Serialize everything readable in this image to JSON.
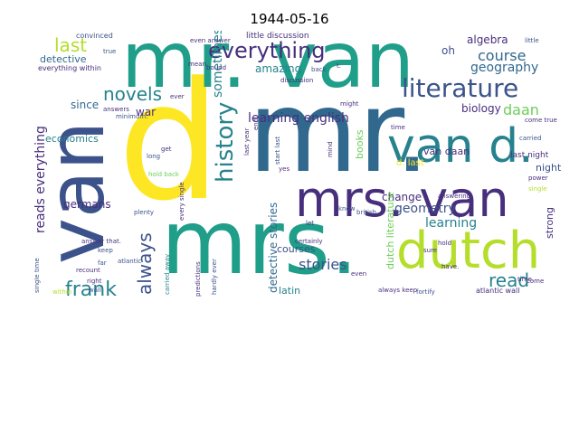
{
  "title": "1944-05-16",
  "palette": {
    "purple": "#472f7d",
    "indigo": "#3b528b",
    "blue": "#31688e",
    "teal": "#26828e",
    "green": "#1f9e89",
    "lime": "#6ece58",
    "yellowgreen": "#b5de2b",
    "yellow": "#fde725"
  },
  "words": {
    "d": "d",
    "mr_big": "mr.",
    "mrs_big": "mrs.",
    "van_big": "van",
    "mr_van": "mr. van",
    "dutch": "dutch",
    "mrs_van": "mrs. van",
    "van_d": "van d.",
    "literature": "literature",
    "everything": "everything",
    "history": "history",
    "novels": "novels",
    "last": "last",
    "frank": "frank",
    "always": "always",
    "stories": "stories",
    "read": "read",
    "learning_english": "learning english",
    "geometry": "geometry",
    "course": "course",
    "geography": "geography",
    "daan": "daan",
    "reads_everything": "reads everything",
    "detective_stories": "detective stories",
    "sometimes": "sometimes",
    "learning": "learning",
    "algebra": "algebra",
    "oh": "oh",
    "amazing": "amazing",
    "biology": "biology",
    "since": "since",
    "war": "war",
    "economics": "economics",
    "germans": "germans",
    "van_daan": "van daan",
    "books": "books",
    "change": "change",
    "courses": "courses",
    "latin": "latin",
    "strong": "strong",
    "night": "night",
    "last_night": "last night",
    "dutch_literature": "dutch literature",
    "d_last": "d. last",
    "detective": "detective",
    "little_discussion": "little discussion",
    "convinced": "convinced",
    "everything_within": "everything within",
    "atlantic_wall": "atlantic wall",
    "always_keep": "always keep",
    "single_time": "single time",
    "carried_away": "carried away",
    "hardly_ever": "hardly ever",
    "last_year": "last year",
    "every_single": "every single",
    "answer_that": "answer that.",
    "plenty": "plenty",
    "hold_back": "hold back",
    "long": "long",
    "get": "get",
    "far": "far",
    "within": "within",
    "come_true": "come true",
    "little": "little",
    "true": "true",
    "time": "time.",
    "time2": "time",
    "come": "come",
    "power": "power",
    "single": "single",
    "carried": "carried",
    "hold": "hold",
    "even": "even",
    "british": "british",
    "let": "let",
    "know": "know",
    "answering": "answering",
    "fortify": "fortify",
    "certainly": "certainly",
    "predictions": "predictions",
    "mind": "mind",
    "start_last": "start last",
    "yes": "yes",
    "back": "back",
    "discussion": "discussion",
    "answers": "answers",
    "minimum": "minimum.",
    "ever": "ever",
    "bound": "bound",
    "mean": "mean",
    "right": "right",
    "keep": "keep",
    "recount": "recount",
    "wall": "wall",
    "atlantic": "atlantic",
    "every": "every",
    "end": "end",
    "might": "might",
    "t": "t.",
    "even_answer": "even answer",
    "sure": "sure",
    "have": "have."
  }
}
